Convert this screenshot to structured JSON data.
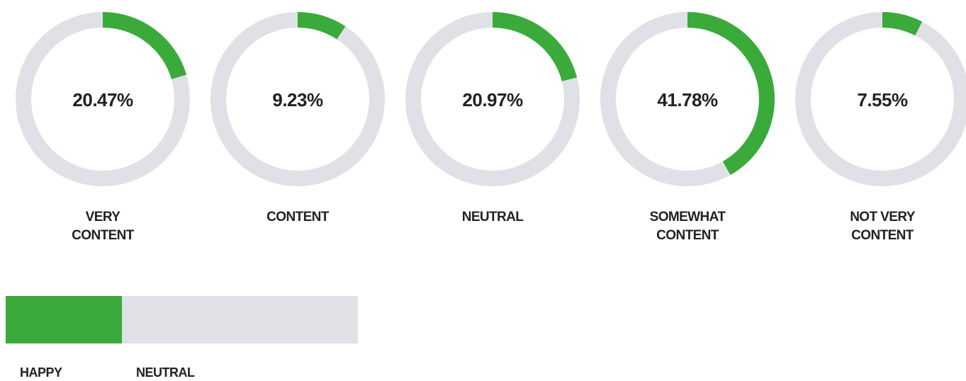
{
  "chart_data": [
    {
      "type": "donut",
      "categories": [
        "VERY CONTENT",
        "CONTENT",
        "NEUTRAL",
        "SOMEWHAT CONTENT",
        "NOT VERY CONTENT"
      ],
      "values": [
        20.47,
        9.23,
        20.97,
        41.78,
        7.55
      ],
      "value_labels": [
        "20.47%",
        "9.23%",
        "20.97%",
        "41.78%",
        "7.55%"
      ],
      "ylim": [
        0,
        100
      ],
      "color": "#3aaa3a",
      "track_color": "#dfe1e6"
    },
    {
      "type": "stacked_bar",
      "categories": [
        "HAPPY",
        "NEUTRAL"
      ],
      "values": [
        33,
        67
      ],
      "xlim": [
        0,
        100
      ],
      "colors": [
        "#3aaa3a",
        "#dfe1e6"
      ]
    }
  ]
}
